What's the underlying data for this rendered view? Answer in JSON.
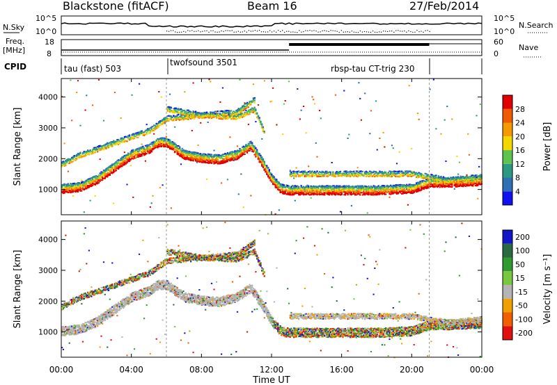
{
  "header": {
    "station": "Blackstone (fitACF)",
    "beam": "Beam 16",
    "date": "27/Feb/2014"
  },
  "nsky_panel": {
    "left_label": "N.Sky",
    "right_label": "N.Search",
    "ytick_top": "10^5",
    "ytick_bottom": "10^0"
  },
  "freq_panel": {
    "left_label_line1": "Freq.",
    "left_label_line2": "[MHz]",
    "right_label": "Nave",
    "ytick_top": "18",
    "ytick_bottom": "8",
    "right_tick_top": "60",
    "right_tick_bottom": "0"
  },
  "cpid_panel": {
    "label": "CPID",
    "modes": [
      {
        "name": "tau (fast) 503",
        "start_hour": 0.0
      },
      {
        "name": "twofsound 3501",
        "start_hour": 6.0
      },
      {
        "name": "rbsp-tau CT-trig 230",
        "start_hour": 21.0
      }
    ]
  },
  "chart_data": [
    {
      "type": "heatmap",
      "title": "Power",
      "ylabel": "Slant Range [km]",
      "xlabel": "",
      "xlim": [
        0,
        24
      ],
      "ylim": [
        180,
        4600
      ],
      "yticks": [
        1000,
        2000,
        3000,
        4000
      ],
      "colorbar": {
        "label": "Power [dB]",
        "ticks": [
          "4",
          "8",
          "12",
          "16",
          "20",
          "24",
          "28"
        ],
        "levels": [
          0,
          4,
          8,
          12,
          16,
          20,
          24,
          28,
          32
        ]
      },
      "bands": [
        {
          "name": "main",
          "t": [
            0,
            1,
            2,
            3,
            4,
            5,
            5.5,
            6,
            7,
            8,
            9,
            10,
            10.8,
            11.5,
            12,
            12.5,
            13,
            14,
            16,
            18,
            20,
            21,
            22,
            24
          ],
          "r": [
            1000,
            1050,
            1300,
            1700,
            2100,
            2300,
            2500,
            2500,
            2100,
            2000,
            1950,
            2100,
            2400,
            1800,
            1300,
            1000,
            950,
            950,
            950,
            950,
            1000,
            1200,
            1200,
            1250
          ]
        },
        {
          "name": "upper",
          "t": [
            0,
            1,
            2,
            3,
            4,
            5,
            6,
            8,
            10,
            11,
            11.6
          ],
          "r": [
            1800,
            2100,
            2300,
            2500,
            2700,
            2900,
            3300,
            3400,
            3350,
            3600,
            2800
          ]
        },
        {
          "name": "high",
          "t": [
            6,
            7,
            8,
            9,
            10,
            10.5,
            11
          ],
          "r": [
            3600,
            3500,
            3400,
            3450,
            3500,
            3700,
            3900
          ]
        },
        {
          "name": "post",
          "t": [
            13,
            14,
            16,
            18,
            20,
            21,
            22,
            24
          ],
          "r": [
            1500,
            1500,
            1500,
            1500,
            1500,
            1400,
            1300,
            1400
          ]
        }
      ]
    },
    {
      "type": "heatmap",
      "title": "Velocity",
      "ylabel": "Slant Range [km]",
      "xlabel": "Time UT",
      "xlim": [
        0,
        24
      ],
      "ylim": [
        180,
        4600
      ],
      "yticks": [
        1000,
        2000,
        3000,
        4000
      ],
      "xticks": [
        "00:00",
        "04:00",
        "08:00",
        "12:00",
        "16:00",
        "20:00",
        "00:00"
      ],
      "colorbar": {
        "label": "Velocity [m s⁻¹]",
        "ticks": [
          "200",
          "100",
          "50",
          "15",
          "-15",
          "-50",
          "-100",
          "-200"
        ]
      }
    }
  ],
  "colors": {
    "power_scale": [
      "#1010f0",
      "#2f70b4",
      "#2c9a80",
      "#5ec450",
      "#f5d700",
      "#f59a00",
      "#f05a00",
      "#e00000"
    ],
    "velocity_scale": [
      "#1515c8",
      "#2a6a40",
      "#2f9a30",
      "#78c840",
      "#b4b4b4",
      "#f0a000",
      "#f06000",
      "#e01010"
    ],
    "ground_scatter": "#b4b4b4"
  }
}
